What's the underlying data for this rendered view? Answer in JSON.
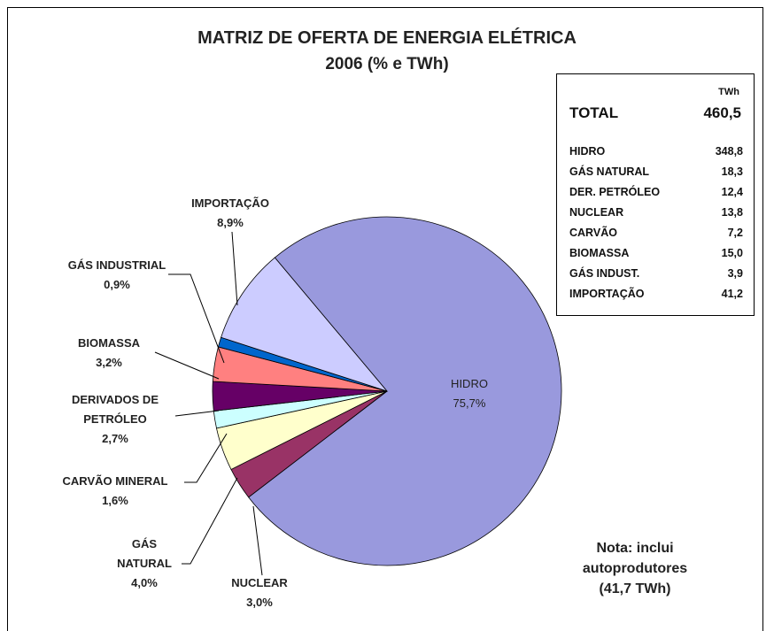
{
  "chart_data": {
    "type": "pie",
    "title": "MATRIZ DE OFERTA DE ENERGIA ELÉTRICA",
    "subtitle": "2006 (% e TWh)",
    "categories": [
      "HIDRO",
      "NUCLEAR",
      "GÁS\nNATURAL",
      "CARVÃO MINERAL",
      "DERIVADOS DE\nPETRÓLEO",
      "BIOMASSA",
      "GÁS INDUSTRIAL",
      "IMPORTAÇÃO"
    ],
    "values": [
      75.7,
      3.0,
      4.0,
      1.6,
      2.7,
      3.2,
      0.9,
      8.9
    ],
    "value_labels": [
      "75,7%",
      "3,0%",
      "4,0%",
      "1,6%",
      "2,7%",
      "3,2%",
      "0,9%",
      "8,9%"
    ],
    "colors": [
      "#9999dd",
      "#993366",
      "#ffffcc",
      "#ccffff",
      "#660066",
      "#ff8080",
      "#0066cc",
      "#ccccff"
    ],
    "table": {
      "unit": "TWh",
      "total_label": "TOTAL",
      "total": "460,5",
      "rows": [
        [
          "HIDRO",
          "348,8"
        ],
        [
          "GÁS NATURAL",
          "18,3"
        ],
        [
          "DER. PETRÓLEO",
          "12,4"
        ],
        [
          "NUCLEAR",
          "13,8"
        ],
        [
          "CARVÃO",
          "7,2"
        ],
        [
          "BIOMASSA",
          "15,0"
        ],
        [
          "GÁS INDUST.",
          "3,9"
        ],
        [
          "IMPORTAÇÃO",
          "41,2"
        ]
      ]
    },
    "note": "Nota:  inclui\nautoprodutores\n(41,7 TWh)"
  }
}
